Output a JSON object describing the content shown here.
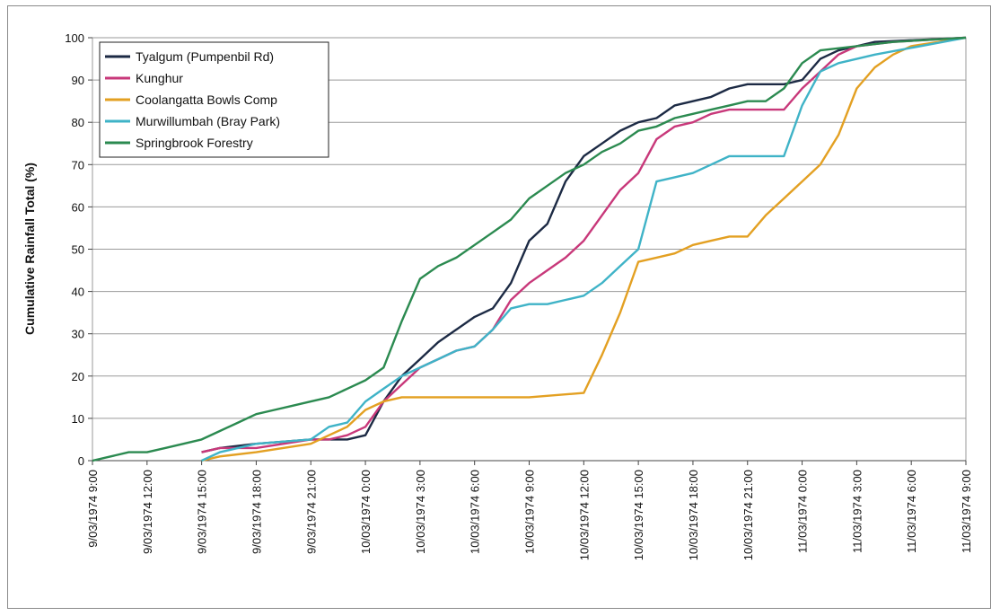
{
  "chart_data": {
    "type": "line",
    "title": "",
    "xlabel": "",
    "ylabel": "Cumulative Rainfall Total (%)",
    "ylim": [
      0,
      100
    ],
    "yticks": [
      0,
      10,
      20,
      30,
      40,
      50,
      60,
      70,
      80,
      90,
      100
    ],
    "xlim": [
      "9/03/1974 9:00",
      "11/03/1974 9:00"
    ],
    "xtick_labels": [
      "9/03/1974 9:00",
      "9/03/1974 12:00",
      "9/03/1974 15:00",
      "9/03/1974 18:00",
      "9/03/1974 21:00",
      "10/03/1974 0:00",
      "10/03/1974 3:00",
      "10/03/1974 6:00",
      "10/03/1974 9:00",
      "10/03/1974 12:00",
      "10/03/1974 15:00",
      "10/03/1974 18:00",
      "10/03/1974 21:00",
      "11/03/1974 0:00",
      "11/03/1974 3:00",
      "11/03/1974 6:00",
      "11/03/1974 9:00"
    ],
    "grid": "horizontal",
    "legend_position": "top-left",
    "series": [
      {
        "name": "Tyalgum (Pumpenbil Rd)",
        "color": "#1c2a44",
        "x": [
          "9/03/1974 15:00",
          "9/03/1974 16:00",
          "9/03/1974 18:00",
          "9/03/1974 21:00",
          "9/03/1974 22:00",
          "9/03/1974 23:00",
          "10/03/1974 0:00",
          "10/03/1974 1:00",
          "10/03/1974 2:00",
          "10/03/1974 3:00",
          "10/03/1974 4:00",
          "10/03/1974 5:00",
          "10/03/1974 6:00",
          "10/03/1974 7:00",
          "10/03/1974 8:00",
          "10/03/1974 9:00",
          "10/03/1974 10:00",
          "10/03/1974 11:00",
          "10/03/1974 12:00",
          "10/03/1974 13:00",
          "10/03/1974 14:00",
          "10/03/1974 15:00",
          "10/03/1974 16:00",
          "10/03/1974 17:00",
          "10/03/1974 18:00",
          "10/03/1974 19:00",
          "10/03/1974 20:00",
          "10/03/1974 21:00",
          "10/03/1974 22:00",
          "10/03/1974 23:00",
          "11/03/1974 0:00",
          "11/03/1974 1:00",
          "11/03/1974 2:00",
          "11/03/1974 3:00",
          "11/03/1974 4:00",
          "11/03/1974 9:00"
        ],
        "values": [
          2,
          3,
          4,
          5,
          5,
          5,
          6,
          14,
          20,
          24,
          28,
          31,
          34,
          36,
          42,
          52,
          56,
          66,
          72,
          75,
          78,
          80,
          81,
          84,
          85,
          86,
          88,
          89,
          89,
          89,
          90,
          95,
          97,
          98,
          99,
          100
        ]
      },
      {
        "name": "Kunghur",
        "color": "#c8387a",
        "x": [
          "9/03/1974 15:00",
          "9/03/1974 16:00",
          "9/03/1974 18:00",
          "9/03/1974 21:00",
          "9/03/1974 22:00",
          "9/03/1974 23:00",
          "10/03/1974 0:00",
          "10/03/1974 1:00",
          "10/03/1974 2:00",
          "10/03/1974 3:00",
          "10/03/1974 4:00",
          "10/03/1974 5:00",
          "10/03/1974 6:00",
          "10/03/1974 7:00",
          "10/03/1974 8:00",
          "10/03/1974 9:00",
          "10/03/1974 10:00",
          "10/03/1974 11:00",
          "10/03/1974 12:00",
          "10/03/1974 13:00",
          "10/03/1974 14:00",
          "10/03/1974 15:00",
          "10/03/1974 16:00",
          "10/03/1974 17:00",
          "10/03/1974 18:00",
          "10/03/1974 19:00",
          "10/03/1974 20:00",
          "10/03/1974 21:00",
          "10/03/1974 22:00",
          "10/03/1974 23:00",
          "11/03/1974 0:00",
          "11/03/1974 1:00",
          "11/03/1974 2:00",
          "11/03/1974 3:00",
          "11/03/1974 5:00",
          "11/03/1974 9:00"
        ],
        "values": [
          2,
          3,
          3,
          5,
          5,
          6,
          8,
          14,
          18,
          22,
          24,
          26,
          27,
          31,
          38,
          42,
          45,
          48,
          52,
          58,
          64,
          68,
          76,
          79,
          80,
          82,
          83,
          83,
          83,
          83,
          88,
          92,
          96,
          98,
          99,
          100
        ]
      },
      {
        "name": "Coolangatta Bowls Comp",
        "color": "#e3a022",
        "x": [
          "9/03/1974 15:00",
          "9/03/1974 16:00",
          "9/03/1974 18:00",
          "9/03/1974 21:00",
          "9/03/1974 22:00",
          "9/03/1974 23:00",
          "10/03/1974 0:00",
          "10/03/1974 1:00",
          "10/03/1974 2:00",
          "10/03/1974 3:00",
          "10/03/1974 6:00",
          "10/03/1974 9:00",
          "10/03/1974 12:00",
          "10/03/1974 13:00",
          "10/03/1974 14:00",
          "10/03/1974 15:00",
          "10/03/1974 16:00",
          "10/03/1974 17:00",
          "10/03/1974 18:00",
          "10/03/1974 19:00",
          "10/03/1974 20:00",
          "10/03/1974 21:00",
          "10/03/1974 22:00",
          "10/03/1974 23:00",
          "11/03/1974 0:00",
          "11/03/1974 1:00",
          "11/03/1974 2:00",
          "11/03/1974 3:00",
          "11/03/1974 4:00",
          "11/03/1974 5:00",
          "11/03/1974 6:00",
          "11/03/1974 9:00"
        ],
        "values": [
          0,
          1,
          2,
          4,
          6,
          8,
          12,
          14,
          15,
          15,
          15,
          15,
          16,
          25,
          35,
          47,
          48,
          49,
          51,
          52,
          53,
          53,
          58,
          62,
          66,
          70,
          77,
          88,
          93,
          96,
          98,
          100
        ]
      },
      {
        "name": "Murwillumbah (Bray Park)",
        "color": "#3fb3c7",
        "x": [
          "9/03/1974 15:00",
          "9/03/1974 16:00",
          "9/03/1974 18:00",
          "9/03/1974 21:00",
          "9/03/1974 22:00",
          "9/03/1974 23:00",
          "10/03/1974 0:00",
          "10/03/1974 1:00",
          "10/03/1974 2:00",
          "10/03/1974 3:00",
          "10/03/1974 4:00",
          "10/03/1974 5:00",
          "10/03/1974 6:00",
          "10/03/1974 7:00",
          "10/03/1974 8:00",
          "10/03/1974 9:00",
          "10/03/1974 10:00",
          "10/03/1974 11:00",
          "10/03/1974 12:00",
          "10/03/1974 13:00",
          "10/03/1974 14:00",
          "10/03/1974 15:00",
          "10/03/1974 16:00",
          "10/03/1974 17:00",
          "10/03/1974 18:00",
          "10/03/1974 19:00",
          "10/03/1974 20:00",
          "10/03/1974 21:00",
          "10/03/1974 22:00",
          "10/03/1974 23:00",
          "11/03/1974 0:00",
          "11/03/1974 1:00",
          "11/03/1974 2:00",
          "11/03/1974 3:00",
          "11/03/1974 4:00",
          "11/03/1974 9:00"
        ],
        "values": [
          0,
          2,
          4,
          5,
          8,
          9,
          14,
          17,
          20,
          22,
          24,
          26,
          27,
          31,
          36,
          37,
          37,
          38,
          39,
          42,
          46,
          50,
          66,
          67,
          68,
          70,
          72,
          72,
          72,
          72,
          84,
          92,
          94,
          95,
          96,
          100
        ]
      },
      {
        "name": "Springbrook Forestry",
        "color": "#2b8a50",
        "x": [
          "9/03/1974 9:00",
          "9/03/1974 10:00",
          "9/03/1974 11:00",
          "9/03/1974 12:00",
          "9/03/1974 13:00",
          "9/03/1974 14:00",
          "9/03/1974 15:00",
          "9/03/1974 16:00",
          "9/03/1974 17:00",
          "9/03/1974 18:00",
          "9/03/1974 19:00",
          "9/03/1974 20:00",
          "9/03/1974 21:00",
          "9/03/1974 22:00",
          "9/03/1974 23:00",
          "10/03/1974 0:00",
          "10/03/1974 1:00",
          "10/03/1974 2:00",
          "10/03/1974 3:00",
          "10/03/1974 4:00",
          "10/03/1974 5:00",
          "10/03/1974 6:00",
          "10/03/1974 7:00",
          "10/03/1974 8:00",
          "10/03/1974 9:00",
          "10/03/1974 10:00",
          "10/03/1974 11:00",
          "10/03/1974 12:00",
          "10/03/1974 13:00",
          "10/03/1974 14:00",
          "10/03/1974 15:00",
          "10/03/1974 16:00",
          "10/03/1974 17:00",
          "10/03/1974 18:00",
          "10/03/1974 19:00",
          "10/03/1974 20:00",
          "10/03/1974 21:00",
          "10/03/1974 22:00",
          "10/03/1974 23:00",
          "11/03/1974 0:00",
          "11/03/1974 1:00",
          "11/03/1974 3:00",
          "11/03/1974 5:00",
          "11/03/1974 9:00"
        ],
        "values": [
          0,
          1,
          2,
          2,
          3,
          4,
          5,
          7,
          9,
          11,
          12,
          13,
          14,
          15,
          17,
          19,
          22,
          33,
          43,
          46,
          48,
          51,
          54,
          57,
          62,
          65,
          68,
          70,
          73,
          75,
          78,
          79,
          81,
          82,
          83,
          84,
          85,
          85,
          88,
          94,
          97,
          98,
          99,
          100
        ]
      }
    ]
  }
}
